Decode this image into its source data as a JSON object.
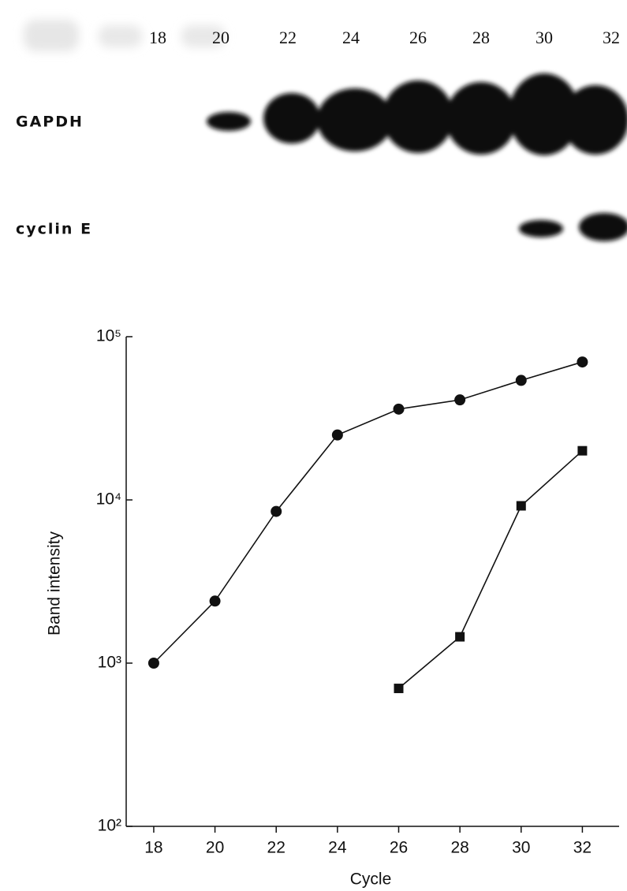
{
  "gel": {
    "lanes": [
      18,
      20,
      22,
      24,
      26,
      28,
      30,
      32
    ],
    "rows": [
      "GAPDH",
      "cyclin E"
    ]
  },
  "chart_data": {
    "type": "line",
    "x_label": "Cycle",
    "y_label": "Band intensity",
    "x": [
      18,
      20,
      22,
      24,
      26,
      28,
      30,
      32
    ],
    "series": [
      {
        "color": "#111111",
        "marker": "circle",
        "values": [
          1000,
          2400,
          8500,
          25000,
          36000,
          41000,
          54000,
          70000
        ]
      },
      {
        "color": "#111111",
        "marker": "square",
        "values": [
          null,
          null,
          null,
          null,
          700,
          1450,
          9200,
          20000
        ]
      }
    ],
    "xlim": [
      17.1,
      33.2
    ],
    "xticks": [
      18,
      20,
      22,
      24,
      26,
      28,
      30,
      32
    ],
    "ylim": [
      100,
      100000
    ],
    "log_y": true,
    "yticks": [
      {
        "value": 100,
        "label": "10²"
      },
      {
        "value": 1000,
        "label": "10³"
      },
      {
        "value": 10000,
        "label": "10⁴"
      },
      {
        "value": 100000,
        "label": "10⁵"
      }
    ],
    "grid": false
  }
}
